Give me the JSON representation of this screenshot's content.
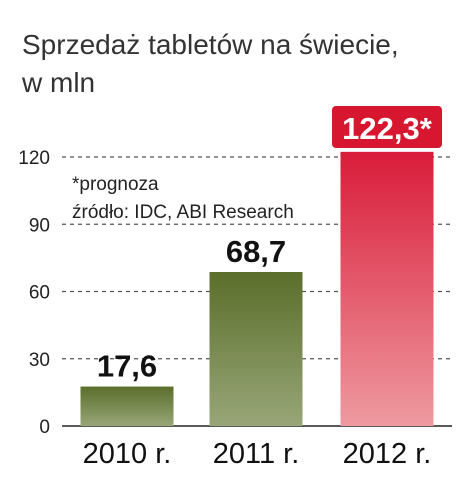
{
  "chart_data": {
    "type": "bar",
    "title_lines": [
      "Sprzedaż tabletów na świecie,",
      "w mln"
    ],
    "xlabel": "",
    "ylabel": "",
    "categories": [
      "2010 r.",
      "2011 r.",
      "2012 r."
    ],
    "values": [
      17.6,
      68.7,
      122.3
    ],
    "value_labels": [
      "17,6",
      "68,7",
      "122,3*"
    ],
    "yticks": [
      0,
      30,
      60,
      90,
      120
    ],
    "ylim": [
      0,
      124
    ],
    "grid": "dashed horizontal",
    "notes": [
      "*prognoza",
      "źródło: IDC, ABI Research"
    ],
    "colors": {
      "bar_normal_top": "#5b6e2a",
      "bar_normal_bottom": "#98a678",
      "bar_highlight_top": "#d91c3a",
      "bar_highlight_bottom": "#ee9aa0",
      "highlight_label_bg": "#d7162f"
    },
    "highlight_index": 2
  }
}
